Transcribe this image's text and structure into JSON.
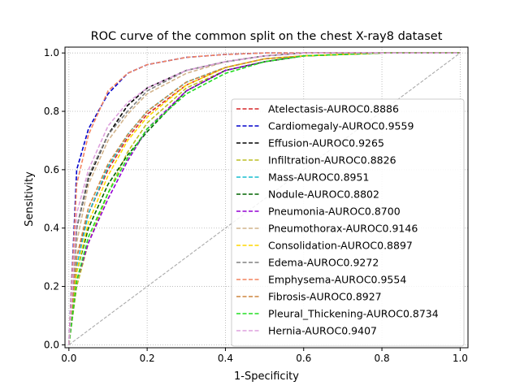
{
  "chart_data": {
    "type": "line",
    "title": "ROC curve of the common split on the chest X-ray8 dataset",
    "xlabel": "1-Specificity",
    "ylabel": "Sensitivity",
    "xlim": [
      -0.01,
      1.02
    ],
    "ylim": [
      -0.01,
      1.02
    ],
    "xticks": [
      0.0,
      0.2,
      0.4,
      0.6,
      0.8,
      1.0
    ],
    "yticks": [
      0.0,
      0.2,
      0.4,
      0.6,
      0.8,
      1.0
    ],
    "xtick_labels": [
      "0.0",
      "0.2",
      "0.4",
      "0.6",
      "0.8",
      "1.0"
    ],
    "ytick_labels": [
      "0.0",
      "0.2",
      "0.4",
      "0.6",
      "0.8",
      "1.0"
    ],
    "grid": true,
    "legend_position": "lower-right",
    "diagonal": {
      "x": [
        0,
        1
      ],
      "y": [
        0,
        1
      ],
      "color": "#aaaaaa",
      "style": "dashed"
    },
    "x": [
      0.0,
      0.02,
      0.05,
      0.1,
      0.15,
      0.2,
      0.3,
      0.4,
      0.5,
      0.6,
      0.8,
      1.0
    ],
    "series": [
      {
        "name": "Atelectasis-AUROC0.8886",
        "color": "#d62728",
        "values": [
          0.0,
          0.3,
          0.45,
          0.6,
          0.71,
          0.79,
          0.89,
          0.95,
          0.98,
          0.99,
          1.0,
          1.0
        ]
      },
      {
        "name": "Cardiomegaly-AUROC0.9559",
        "color": "#0000cc",
        "values": [
          0.0,
          0.6,
          0.74,
          0.86,
          0.93,
          0.96,
          0.985,
          0.995,
          1.0,
          1.0,
          1.0,
          1.0
        ]
      },
      {
        "name": "Effusion-AUROC0.9265",
        "color": "#000000",
        "values": [
          0.0,
          0.4,
          0.57,
          0.72,
          0.82,
          0.88,
          0.94,
          0.97,
          0.99,
          1.0,
          1.0,
          1.0
        ]
      },
      {
        "name": "Infiltration-AUROC0.8826",
        "color": "#bcbd22",
        "values": [
          0.0,
          0.2,
          0.35,
          0.52,
          0.66,
          0.76,
          0.88,
          0.94,
          0.97,
          0.99,
          1.0,
          1.0
        ]
      },
      {
        "name": "Mass-AUROC0.8951",
        "color": "#17becf",
        "values": [
          0.0,
          0.27,
          0.45,
          0.61,
          0.72,
          0.8,
          0.9,
          0.95,
          0.98,
          0.99,
          1.0,
          1.0
        ]
      },
      {
        "name": "Nodule-AUROC0.8802",
        "color": "#006400",
        "values": [
          0.0,
          0.25,
          0.4,
          0.55,
          0.65,
          0.73,
          0.87,
          0.94,
          0.97,
          0.99,
          1.0,
          1.0
        ]
      },
      {
        "name": "Pneumonia-AUROC0.8700",
        "color": "#9400d3",
        "values": [
          0.0,
          0.22,
          0.35,
          0.5,
          0.63,
          0.74,
          0.87,
          0.94,
          0.97,
          0.99,
          1.0,
          1.0
        ]
      },
      {
        "name": "Pneumothorax-AUROC0.9146",
        "color": "#d2b48c",
        "values": [
          0.0,
          0.35,
          0.55,
          0.7,
          0.79,
          0.86,
          0.93,
          0.97,
          0.99,
          1.0,
          1.0,
          1.0
        ]
      },
      {
        "name": "Consolidation-AUROC0.8897",
        "color": "#ffd700",
        "values": [
          0.0,
          0.25,
          0.42,
          0.58,
          0.7,
          0.78,
          0.89,
          0.95,
          0.98,
          0.99,
          1.0,
          1.0
        ]
      },
      {
        "name": "Edema-AUROC0.9272",
        "color": "#808080",
        "values": [
          0.0,
          0.4,
          0.58,
          0.72,
          0.8,
          0.87,
          0.94,
          0.97,
          0.99,
          1.0,
          1.0,
          1.0
        ]
      },
      {
        "name": "Emphysema-AUROC0.9554",
        "color": "#f4845f",
        "values": [
          0.0,
          0.55,
          0.72,
          0.87,
          0.93,
          0.96,
          0.985,
          0.995,
          1.0,
          1.0,
          1.0,
          1.0
        ]
      },
      {
        "name": "Fibrosis-AUROC0.8927",
        "color": "#cd853f",
        "values": [
          0.0,
          0.3,
          0.47,
          0.62,
          0.72,
          0.8,
          0.9,
          0.95,
          0.98,
          0.99,
          1.0,
          1.0
        ]
      },
      {
        "name": "Pleural_Thickening-AUROC0.8734",
        "color": "#22dd22",
        "values": [
          0.0,
          0.22,
          0.37,
          0.52,
          0.64,
          0.74,
          0.86,
          0.93,
          0.97,
          0.99,
          1.0,
          1.0
        ]
      },
      {
        "name": "Hernia-AUROC0.9407",
        "color": "#dda0dd",
        "values": [
          0.0,
          0.45,
          0.6,
          0.75,
          0.83,
          0.88,
          0.94,
          0.97,
          0.99,
          1.0,
          1.0,
          1.0
        ]
      }
    ]
  }
}
